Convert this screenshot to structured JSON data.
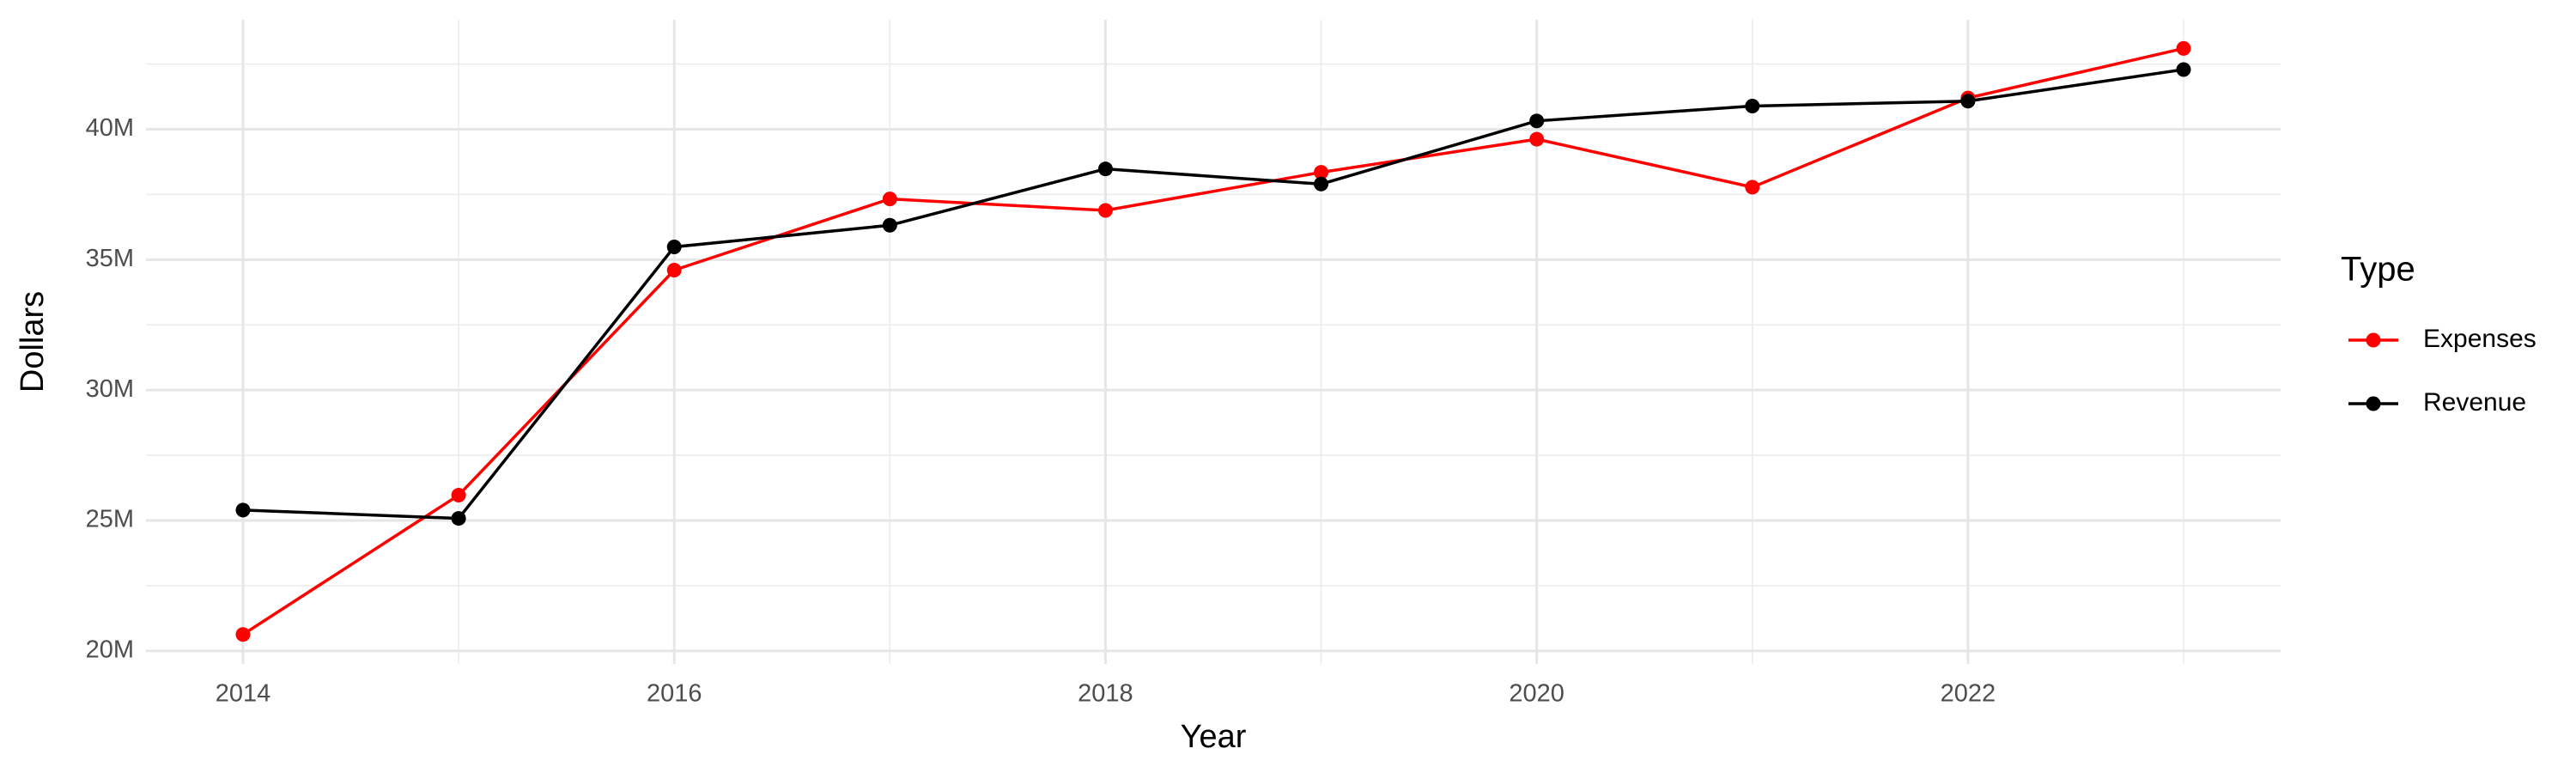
{
  "chart_data": {
    "type": "line",
    "x_label": "Year",
    "y_label": "Dollars",
    "x": [
      2014,
      2015,
      2016,
      2017,
      2018,
      2019,
      2020,
      2021,
      2022,
      2023
    ],
    "series": [
      {
        "name": "Expenses",
        "color": "#ff0000",
        "values": [
          20630000,
          25970000,
          34600000,
          37330000,
          36890000,
          38350000,
          39620000,
          37780000,
          41200000,
          43100000
        ]
      },
      {
        "name": "Revenue",
        "color": "#000000",
        "values": [
          25400000,
          25080000,
          35490000,
          36320000,
          38480000,
          37900000,
          40320000,
          40890000,
          41080000,
          42290000
        ]
      }
    ],
    "legend_title": "Type",
    "legend": "right",
    "xlim": [
      2013.55,
      2023.45
    ],
    "xticks": [
      2014,
      2016,
      2018,
      2020,
      2022
    ],
    "ylim": [
      19500000,
      44200000
    ],
    "yticks": [
      {
        "value": 20000000,
        "label": "20M"
      },
      {
        "value": 25000000,
        "label": "25M"
      },
      {
        "value": 30000000,
        "label": "30M"
      },
      {
        "value": 35000000,
        "label": "35M"
      },
      {
        "value": 40000000,
        "label": "40M"
      }
    ],
    "grid": true
  }
}
